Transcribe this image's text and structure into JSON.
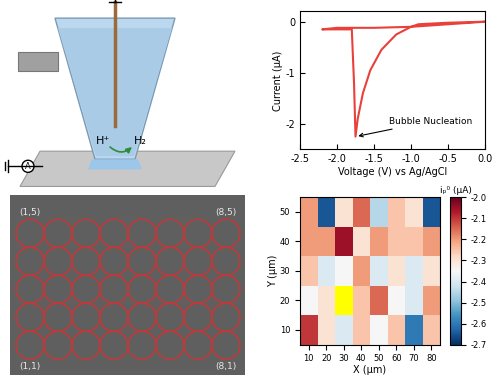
{
  "chart_data": [
    {
      "type": "line",
      "x": [
        0.0,
        -0.5,
        -0.9,
        -1.0,
        -1.2,
        -1.4,
        -1.55,
        -1.65,
        -1.72,
        -1.75,
        -1.77,
        -1.8,
        -2.0,
        -2.2,
        -2.0,
        -1.5,
        -1.0,
        -0.5,
        0.0
      ],
      "values": [
        0.0,
        -0.02,
        -0.05,
        -0.1,
        -0.25,
        -0.55,
        -0.95,
        -1.4,
        -1.9,
        -2.25,
        -1.2,
        -0.15,
        -0.15,
        -0.15,
        -0.12,
        -0.12,
        -0.1,
        -0.05,
        0.0
      ],
      "color": "#e8413c",
      "xlabel": "Voltage (V) vs Ag/AgCl",
      "ylabel": "Current (μA)",
      "xlim": [
        -2.5,
        0.0
      ],
      "xticks": [
        {
          "value": -2.5,
          "label": "-2.5"
        },
        {
          "value": -2.0,
          "label": "-2.0"
        },
        {
          "value": -1.5,
          "label": "-1.5"
        },
        {
          "value": -1.0,
          "label": "-1.0"
        },
        {
          "value": -0.5,
          "label": "-0.5"
        },
        {
          "value": 0.0,
          "label": "0.0"
        }
      ],
      "ylim": [
        -2.5,
        0.2
      ],
      "yticks": [
        -2,
        -1,
        0
      ],
      "annotations": [
        {
          "text": "Bubble Nucleation",
          "x": -1.75,
          "y": -2.25
        }
      ]
    },
    {
      "type": "heatmap",
      "x": [
        10,
        20,
        30,
        40,
        50,
        60,
        70,
        80
      ],
      "y": [
        10,
        20,
        30,
        40,
        50
      ],
      "cells": [
        [
          -2.1,
          -2.3,
          -2.4,
          -2.25,
          -2.35,
          -2.25,
          -2.6,
          -2.25
        ],
        [
          -2.35,
          -2.3,
          null,
          -2.25,
          -2.15,
          -2.35,
          -2.4,
          -2.2
        ],
        [
          -2.25,
          -2.4,
          -2.35,
          -2.2,
          -2.4,
          -2.3,
          -2.4,
          -2.3
        ],
        [
          -2.2,
          -2.2,
          -2.05,
          -2.3,
          -2.2,
          -2.25,
          -2.25,
          -2.2
        ],
        [
          -2.2,
          -2.65,
          -2.3,
          -2.15,
          -2.45,
          -2.25,
          -2.3,
          -2.65
        ]
      ],
      "xlabel": "X (μm)",
      "ylabel": "Y (μm)",
      "xlim": [
        5,
        85
      ],
      "ylim": [
        5,
        55
      ],
      "xticks": [
        10,
        20,
        30,
        40,
        50,
        60,
        70,
        80
      ],
      "yticks": [
        10,
        20,
        30,
        40,
        50
      ],
      "colorbar": {
        "title": "iₚ⁰ (μA)",
        "range": [
          -2.7,
          -2.0
        ],
        "ticks": [
          {
            "value": -2.0,
            "label": "-2.0"
          },
          {
            "value": -2.1,
            "label": "-2.1"
          },
          {
            "value": -2.2,
            "label": "-2.2"
          },
          {
            "value": -2.3,
            "label": "-2.3"
          },
          {
            "value": -2.4,
            "label": "-2.4"
          },
          {
            "value": -2.5,
            "label": "-2.5"
          },
          {
            "value": -2.6,
            "label": "-2.6"
          },
          {
            "value": -2.7,
            "label": "-2.7"
          }
        ]
      }
    }
  ],
  "schematic": {
    "labels": {
      "ion": "H⁺",
      "gas": "H₂",
      "meter": "A"
    }
  },
  "micrograph": {
    "grid": {
      "columns": 8,
      "rows": 5
    },
    "corner_labels": [
      {
        "text": "(1,5)",
        "column": 1,
        "row": 5
      },
      {
        "text": "(8,5)",
        "column": 8,
        "row": 5
      },
      {
        "text": "(1,1)",
        "column": 1,
        "row": 1
      },
      {
        "text": "(8,1)",
        "column": 8,
        "row": 1
      }
    ]
  }
}
